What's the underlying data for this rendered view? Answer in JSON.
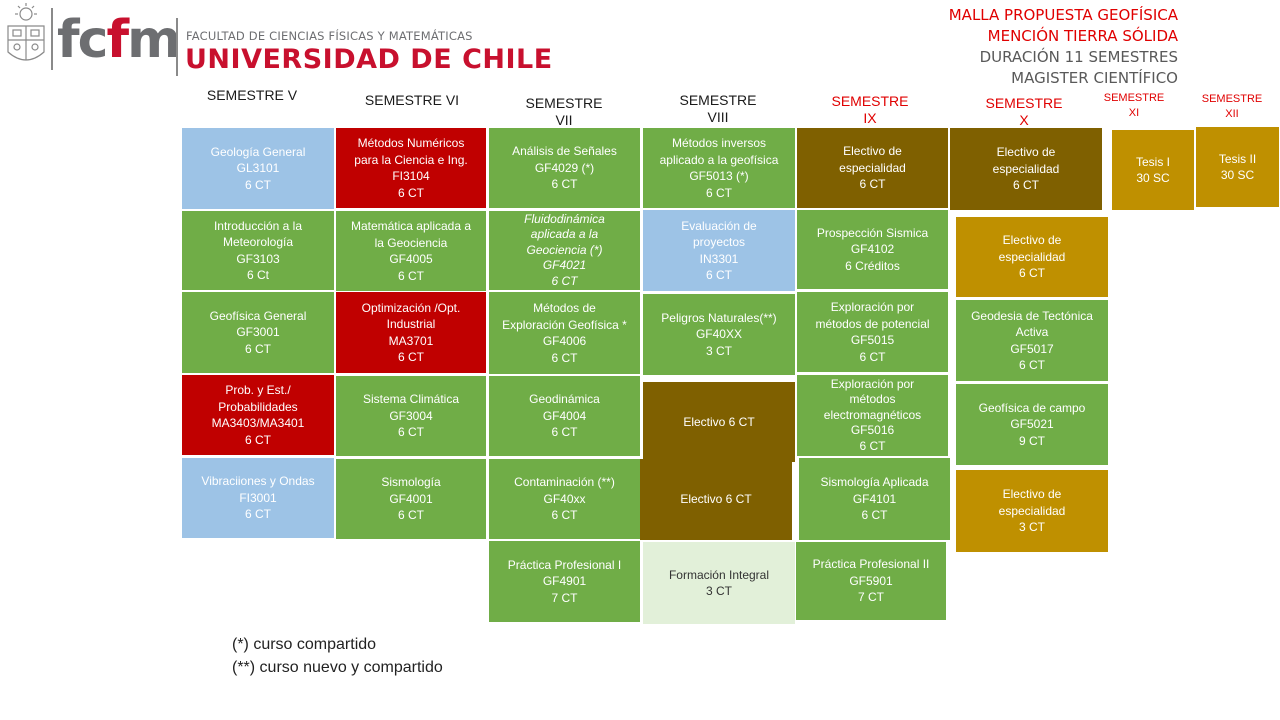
{
  "header": {
    "logo_main": "fc",
    "logo_accent": "f",
    "logo_end": "m",
    "faculty": "FACULTAD DE CIENCIAS FÍSICAS Y MATEMÁTICAS",
    "university": "UNIVERSIDAD DE CHILE"
  },
  "program": {
    "line1": "MALLA PROPUESTA GEOFÍSICA",
    "line2": "MENCIÓN TIERRA SÓLIDA",
    "line3": "DURACIÓN 11 SEMESTRES",
    "line4": "MAGISTER CIENTÍFICO"
  },
  "semesters": [
    "SEMESTRE V",
    "SEMESTRE VI",
    "SEMESTRE\nVII",
    "SEMESTRE\nVIII",
    "SEMESTRE\nIX",
    "SEMESTRE\nX",
    "SEMESTRE\nXI",
    "SEMESTRE\nXII"
  ],
  "courses": {
    "s5": [
      "Geología General\nGL3101\n6 CT",
      "Introducción a la\nMeteorología\nGF3103\n6 Ct",
      "Geofísica General\nGF3001\n6 CT",
      "Prob. y Est./\nProbabilidades\nMA3403/MA3401\n6 CT",
      "Vibraciiones y Ondas\nFI3001\n6 CT"
    ],
    "s6": [
      "Métodos Numéricos\npara la Ciencia e Ing.\nFI3104\n6 CT",
      "Matemática aplicada a\nla Geociencia\nGF4005\n6 CT",
      "Optimización /Opt.\nIndustrial\nMA3701\n6 CT",
      "Sistema Climática\nGF3004\n6 CT",
      "Sismología\nGF4001\n6 CT"
    ],
    "s7": [
      "Análisis de Señales\nGF4029 (*)\n6 CT",
      "Fluidodinámica\naplicada a la\nGeociencia (*)\nGF4021\n6 CT",
      "Métodos de\nExploración Geofísica *\nGF4006\n6 CT",
      "Geodinámica\nGF4004\n6 CT",
      "Contaminación (**)\nGF40xx\n6 CT",
      "Práctica Profesional I\nGF4901\n7 CT"
    ],
    "s8": [
      "Métodos inversos\naplicado a la geofísica\nGF5013 (*)\n6 CT",
      "Evaluación de\nproyectos\nIN3301\n6 CT",
      "Peligros Naturales(**)\nGF40XX\n3 CT",
      "Electivo 6 CT",
      "Electivo 6 CT",
      "Formación Integral\n3 CT"
    ],
    "s9": [
      "Electivo de\nespecialidad\n6 CT",
      "Prospección Sismica\nGF4102\n6 Créditos",
      "Exploración por\nmétodos de potencial\nGF5015\n6 CT",
      "Exploración por\nmétodos\nelectromagnéticos\nGF5016\n6 CT",
      "Sismología Aplicada\nGF4101\n6 CT",
      "Práctica Profesional II\nGF5901\n7 CT"
    ],
    "s10": [
      "Electivo de\nespecialidad\n6 CT",
      "Electivo de\nespecialidad\n6 CT",
      "Geodesia de Tectónica\nActiva\nGF5017\n6 CT",
      "Geofísica de campo\nGF5021\n9 CT",
      "Electivo de\nespecialidad\n3 CT"
    ],
    "s11": [
      "Tesis I\n30 SC"
    ],
    "s12": [
      "Tesis II\n30 SC"
    ]
  },
  "notes": {
    "shared": "(*) curso compartido",
    "new_shared": "(**) curso nuevo y compartido"
  },
  "colors": {
    "core": "#70ad47",
    "basic": "#9dc3e6",
    "math": "#c00000",
    "elective": "#7f6000",
    "specialty": "#bf9000",
    "general": "#e2f0d9",
    "accent_red": "#e00000"
  }
}
